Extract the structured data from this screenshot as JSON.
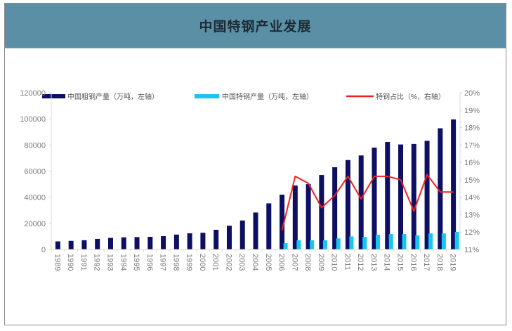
{
  "header": {
    "title": "中国特钢产业发展"
  },
  "colors": {
    "header_bg": "#5b8fa6",
    "crude_steel": "#0d0f63",
    "special_steel": "#18c4f0",
    "share_line": "#ee2222",
    "axis_text": "#7a7a7a"
  },
  "chart_data": {
    "type": "bar",
    "title": "中国特钢产业发展",
    "categories": [
      "1989",
      "1990",
      "1991",
      "1992",
      "1993",
      "1994",
      "1995",
      "1996",
      "1997",
      "1998",
      "1999",
      "2000",
      "2001",
      "2002",
      "2003",
      "2004",
      "2005",
      "2006",
      "2007",
      "2008",
      "2009",
      "2010",
      "2011",
      "2012",
      "2013",
      "2014",
      "2015",
      "2016",
      "2017",
      "2018",
      "2019"
    ],
    "series": [
      {
        "name": "中国粗钢产量（万吨，左轴）",
        "type": "bar",
        "axis": "left",
        "values": [
          6200,
          6600,
          7100,
          8100,
          8900,
          9300,
          9500,
          9700,
          10200,
          11400,
          12400,
          12800,
          15100,
          18200,
          22200,
          28300,
          35300,
          42000,
          49000,
          50000,
          57000,
          63000,
          68500,
          72000,
          78000,
          82300,
          80400,
          80800,
          83200,
          92800,
          99600
        ]
      },
      {
        "name": "中国特钢产量（万吨，左轴）",
        "type": "bar",
        "axis": "left",
        "values": [
          null,
          null,
          null,
          null,
          null,
          null,
          null,
          null,
          null,
          null,
          null,
          null,
          null,
          null,
          null,
          null,
          null,
          4800,
          7000,
          7000,
          7000,
          8500,
          10000,
          9600,
          11300,
          11800,
          11800,
          10800,
          12300,
          12300,
          13500
        ]
      },
      {
        "name": "特钢占比（%，右轴）",
        "type": "line",
        "axis": "right",
        "values": [
          null,
          null,
          null,
          null,
          null,
          null,
          null,
          null,
          null,
          null,
          null,
          null,
          null,
          null,
          null,
          null,
          null,
          12.1,
          15.2,
          14.8,
          13.4,
          14.1,
          15.2,
          13.9,
          15.2,
          15.2,
          15.0,
          13.2,
          15.3,
          14.3,
          14.3
        ]
      }
    ],
    "xlabel": "",
    "ylabel": "",
    "ylim": [
      0,
      120000
    ],
    "y_ticks": [
      "0",
      "20000",
      "40000",
      "60000",
      "80000",
      "100000",
      "120000"
    ],
    "y2lim": [
      11,
      20
    ],
    "y2_ticks": [
      "11%",
      "12%",
      "13%",
      "14%",
      "15%",
      "16%",
      "17%",
      "18%",
      "19%",
      "20%"
    ],
    "legend_position": "top",
    "grid": false
  }
}
